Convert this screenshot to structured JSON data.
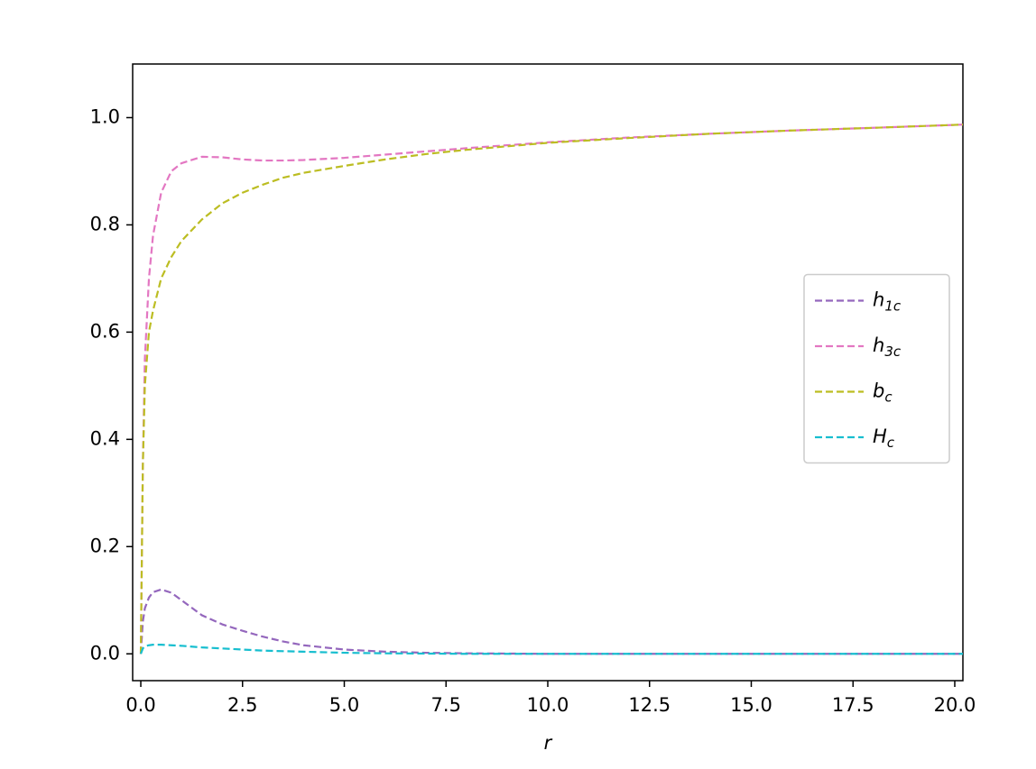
{
  "chart_data": {
    "type": "line",
    "xlabel": "r",
    "x": [
      0,
      0.05,
      0.1,
      0.2,
      0.3,
      0.5,
      0.75,
      1,
      1.5,
      2,
      2.5,
      3,
      3.5,
      4,
      5,
      6,
      7,
      8,
      10,
      12,
      14,
      16,
      18,
      20.2
    ],
    "series": [
      {
        "name": "h1c",
        "color": "#9467bd",
        "values": [
          0,
          0.06,
          0.085,
          0.105,
          0.115,
          0.12,
          0.114,
          0.1,
          0.072,
          0.055,
          0.043,
          0.032,
          0.023,
          0.016,
          0.008,
          0.004,
          0.002,
          0.001,
          0,
          0,
          0,
          0,
          0,
          0
        ]
      },
      {
        "name": "h3c",
        "color": "#e377c2",
        "values": [
          0,
          0.35,
          0.55,
          0.7,
          0.78,
          0.86,
          0.9,
          0.915,
          0.927,
          0.926,
          0.922,
          0.92,
          0.92,
          0.921,
          0.925,
          0.931,
          0.937,
          0.943,
          0.954,
          0.963,
          0.97,
          0.976,
          0.981,
          0.987
        ]
      },
      {
        "name": "bc",
        "color": "#bcbd22",
        "values": [
          0,
          0.35,
          0.5,
          0.6,
          0.64,
          0.7,
          0.74,
          0.77,
          0.81,
          0.84,
          0.86,
          0.875,
          0.888,
          0.897,
          0.91,
          0.922,
          0.932,
          0.94,
          0.953,
          0.962,
          0.97,
          0.976,
          0.981,
          0.987
        ]
      },
      {
        "name": "Hc",
        "color": "#17becf",
        "values": [
          0,
          0.01,
          0.014,
          0.016,
          0.017,
          0.017,
          0.016,
          0.015,
          0.012,
          0.01,
          0.008,
          0.006,
          0.005,
          0.004,
          0.002,
          0.001,
          0.0005,
          0,
          0,
          0,
          0,
          0,
          0,
          0
        ]
      }
    ],
    "xlim": [
      -0.2,
      20.2
    ],
    "xticks": [
      {
        "value": 0,
        "label": "0.0"
      },
      2.5,
      {
        "value": 5,
        "label": "5.0"
      },
      7.5,
      {
        "value": 10,
        "label": "10.0"
      },
      12.5,
      {
        "value": 15,
        "label": "15.0"
      },
      17.5,
      {
        "value": 20,
        "label": "20.0"
      }
    ],
    "ylim": [
      -0.05,
      1.1
    ],
    "yticks": [
      {
        "value": 0,
        "label": "0.0"
      },
      0.2,
      0.4,
      0.6,
      0.8,
      {
        "value": 1,
        "label": "1.0"
      }
    ],
    "legend": "center right",
    "grid": false
  }
}
